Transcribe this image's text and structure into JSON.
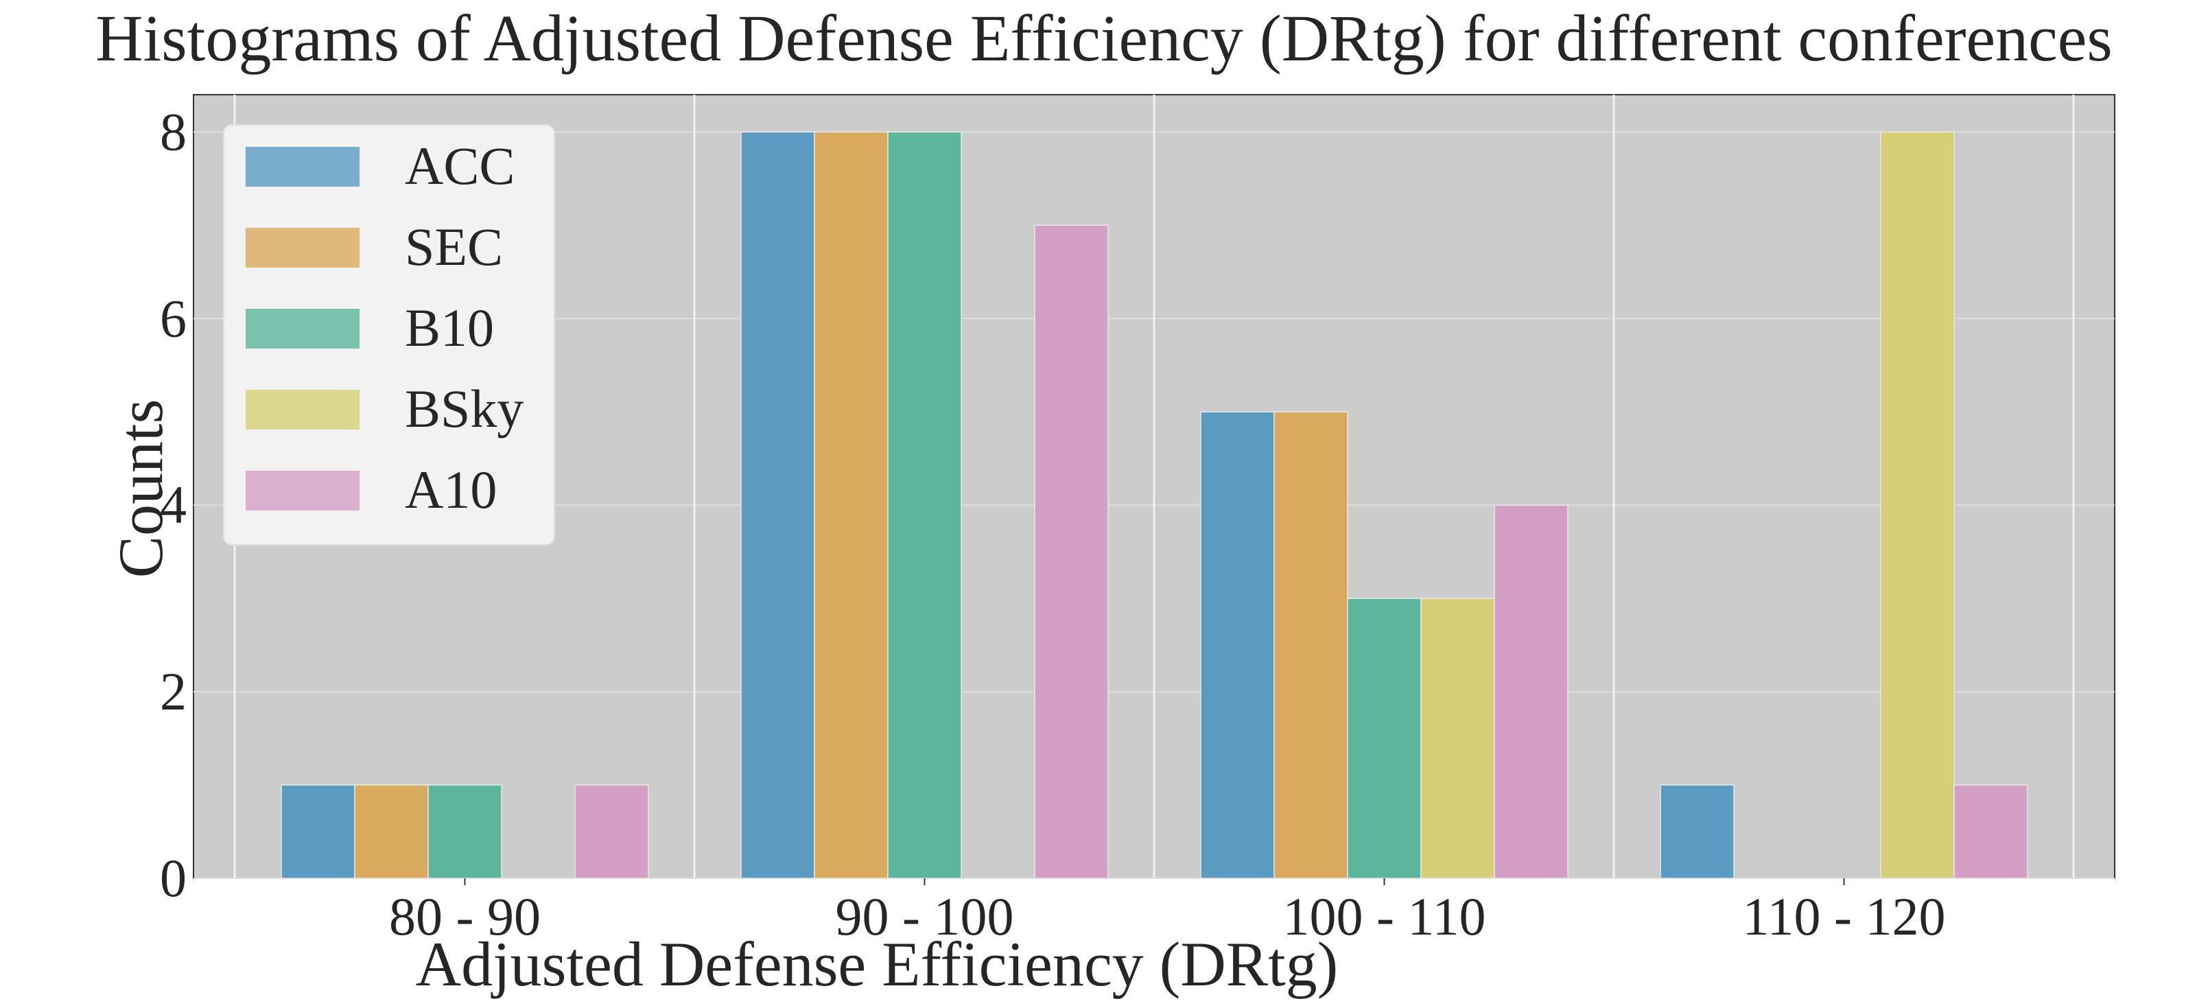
{
  "chart_data": {
    "type": "bar",
    "title": "Histograms of Adjusted Defense Efficiency (DRtg) for different conferences",
    "xlabel": "Adjusted Defense Efficiency (DRtg)",
    "ylabel": "Counts",
    "categories": [
      "80 - 90",
      "90 - 100",
      "100 - 110",
      "110 - 120"
    ],
    "ylim": [
      0,
      8.4
    ],
    "yticks": [
      "0",
      "2",
      "4",
      "6",
      "8"
    ],
    "grid": true,
    "legend_position": "top-left",
    "series": [
      {
        "name": "ACC",
        "values": [
          1,
          8,
          5,
          1
        ],
        "color": "#5b9bc2"
      },
      {
        "name": "SEC",
        "values": [
          1,
          8,
          5,
          0
        ],
        "color": "#d9a95e"
      },
      {
        "name": "B10",
        "values": [
          1,
          8,
          3,
          0
        ],
        "color": "#5db59c"
      },
      {
        "name": "BSky",
        "values": [
          0,
          0,
          3,
          8
        ],
        "color": "#d6cf77"
      },
      {
        "name": "A10",
        "values": [
          1,
          7,
          4,
          1
        ],
        "color": "#d39fc4"
      }
    ],
    "background": "#cccccc"
  }
}
